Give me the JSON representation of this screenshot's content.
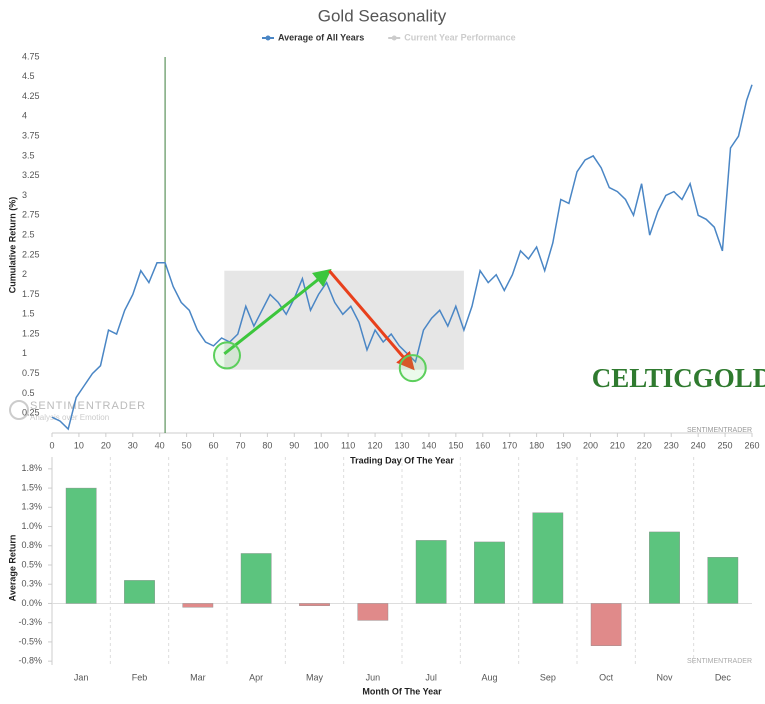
{
  "chart_data": [
    {
      "type": "line",
      "title": "Gold Seasonality",
      "y_label": "Cumulative Return (%)",
      "x_label": "Trading Day Of The Year",
      "xlim": [
        0,
        260
      ],
      "xticks": [
        0,
        10,
        20,
        30,
        40,
        50,
        60,
        70,
        80,
        90,
        100,
        110,
        120,
        130,
        140,
        150,
        160,
        170,
        180,
        190,
        200,
        210,
        220,
        230,
        240,
        250,
        260
      ],
      "ylim": [
        0,
        4.75
      ],
      "yticks": [
        0.25,
        0.5,
        0.75,
        1,
        1.25,
        1.5,
        1.75,
        2,
        2.25,
        2.5,
        2.75,
        3,
        3.25,
        3.5,
        3.75,
        4,
        4.25,
        4.5,
        4.75
      ],
      "x": [
        0,
        3,
        6,
        9,
        12,
        15,
        18,
        21,
        24,
        27,
        30,
        33,
        36,
        39,
        42,
        45,
        48,
        51,
        54,
        57,
        60,
        63,
        66,
        69,
        72,
        75,
        78,
        81,
        84,
        87,
        90,
        93,
        96,
        99,
        102,
        105,
        108,
        111,
        114,
        117,
        120,
        123,
        126,
        129,
        132,
        135,
        138,
        141,
        144,
        147,
        150,
        153,
        156,
        159,
        162,
        165,
        168,
        171,
        174,
        177,
        180,
        183,
        186,
        189,
        192,
        195,
        198,
        201,
        204,
        207,
        210,
        213,
        216,
        219,
        222,
        225,
        228,
        231,
        234,
        237,
        240,
        243,
        246,
        249,
        252,
        255,
        258,
        260
      ],
      "series": [
        {
          "name": "Average of All Years",
          "color": "#4a86c5",
          "values": [
            0.2,
            0.15,
            0.05,
            0.45,
            0.6,
            0.75,
            0.85,
            1.3,
            1.25,
            1.55,
            1.75,
            2.05,
            1.9,
            2.15,
            2.15,
            1.85,
            1.65,
            1.55,
            1.3,
            1.15,
            1.1,
            1.2,
            1.15,
            1.25,
            1.6,
            1.35,
            1.55,
            1.75,
            1.65,
            1.5,
            1.7,
            1.95,
            1.55,
            1.75,
            1.9,
            1.65,
            1.5,
            1.6,
            1.4,
            1.05,
            1.3,
            1.15,
            1.25,
            1.1,
            1.0,
            0.9,
            1.3,
            1.45,
            1.55,
            1.35,
            1.6,
            1.3,
            1.6,
            2.05,
            1.9,
            2.0,
            1.8,
            2.0,
            2.3,
            2.2,
            2.35,
            2.05,
            2.4,
            2.95,
            2.9,
            3.3,
            3.45,
            3.5,
            3.35,
            3.1,
            3.05,
            2.95,
            2.75,
            3.15,
            2.5,
            2.8,
            3.0,
            3.05,
            2.95,
            3.15,
            2.75,
            2.7,
            2.6,
            2.3,
            3.6,
            3.75,
            4.2,
            4.4
          ]
        }
      ],
      "hidden_series": [
        {
          "name": "Current Year Performance",
          "color": "#cccccc"
        }
      ],
      "vline": {
        "x": 42,
        "color": "#3a7d3a"
      },
      "highlight": {
        "x": [
          64,
          153
        ],
        "y": [
          0.8,
          2.05
        ],
        "color": "#e6e6e6"
      },
      "arrows": [
        {
          "from": [
            64,
            1.0
          ],
          "to": [
            103,
            2.05
          ],
          "color": "#3cc63c"
        },
        {
          "from": [
            103,
            2.05
          ],
          "to": [
            134,
            0.82
          ],
          "color": "#e8401c"
        }
      ],
      "circles": [
        {
          "x": 65,
          "y": 0.98
        },
        {
          "x": 134,
          "y": 0.82
        }
      ],
      "watermark": "SENTIMENTRADER",
      "watermark_sub": "Analysis over Emotion",
      "logo": "CELTICGOLD",
      "logo_sub": "SENTIMENTRADER"
    },
    {
      "type": "bar",
      "y_label": "Average Return",
      "x_label": "Month Of The Year",
      "categories": [
        "Jan",
        "Feb",
        "Mar",
        "Apr",
        "May",
        "Jun",
        "Jul",
        "Aug",
        "Sep",
        "Oct",
        "Nov",
        "Dec"
      ],
      "values": [
        1.5,
        0.3,
        -0.05,
        0.65,
        -0.03,
        -0.22,
        0.82,
        0.8,
        1.18,
        -0.55,
        0.93,
        0.6
      ],
      "colors": [
        "#5cc47e",
        "#5cc47e",
        "#e08a8a",
        "#5cc47e",
        "#e08a8a",
        "#e08a8a",
        "#5cc47e",
        "#5cc47e",
        "#5cc47e",
        "#e08a8a",
        "#5cc47e",
        "#5cc47e"
      ],
      "ylim": [
        -0.8,
        1.8
      ],
      "yticks": [
        {
          "value": 1.75,
          "label": "1.8%"
        },
        {
          "value": 1.5,
          "label": "1.5%"
        },
        {
          "value": 1.25,
          "label": "1.3%"
        },
        {
          "value": 1.0,
          "label": "1.0%"
        },
        {
          "value": 0.75,
          "label": "0.8%"
        },
        {
          "value": 0.5,
          "label": "0.5%"
        },
        {
          "value": 0.25,
          "label": "0.3%"
        },
        {
          "value": 0,
          "label": "0.0%"
        },
        {
          "value": -0.25,
          "label": "-0.3%"
        },
        {
          "value": -0.5,
          "label": "-0.5%"
        },
        {
          "value": -0.75,
          "label": "-0.8%"
        }
      ],
      "watermark": "SENTIMENTRADER"
    }
  ]
}
